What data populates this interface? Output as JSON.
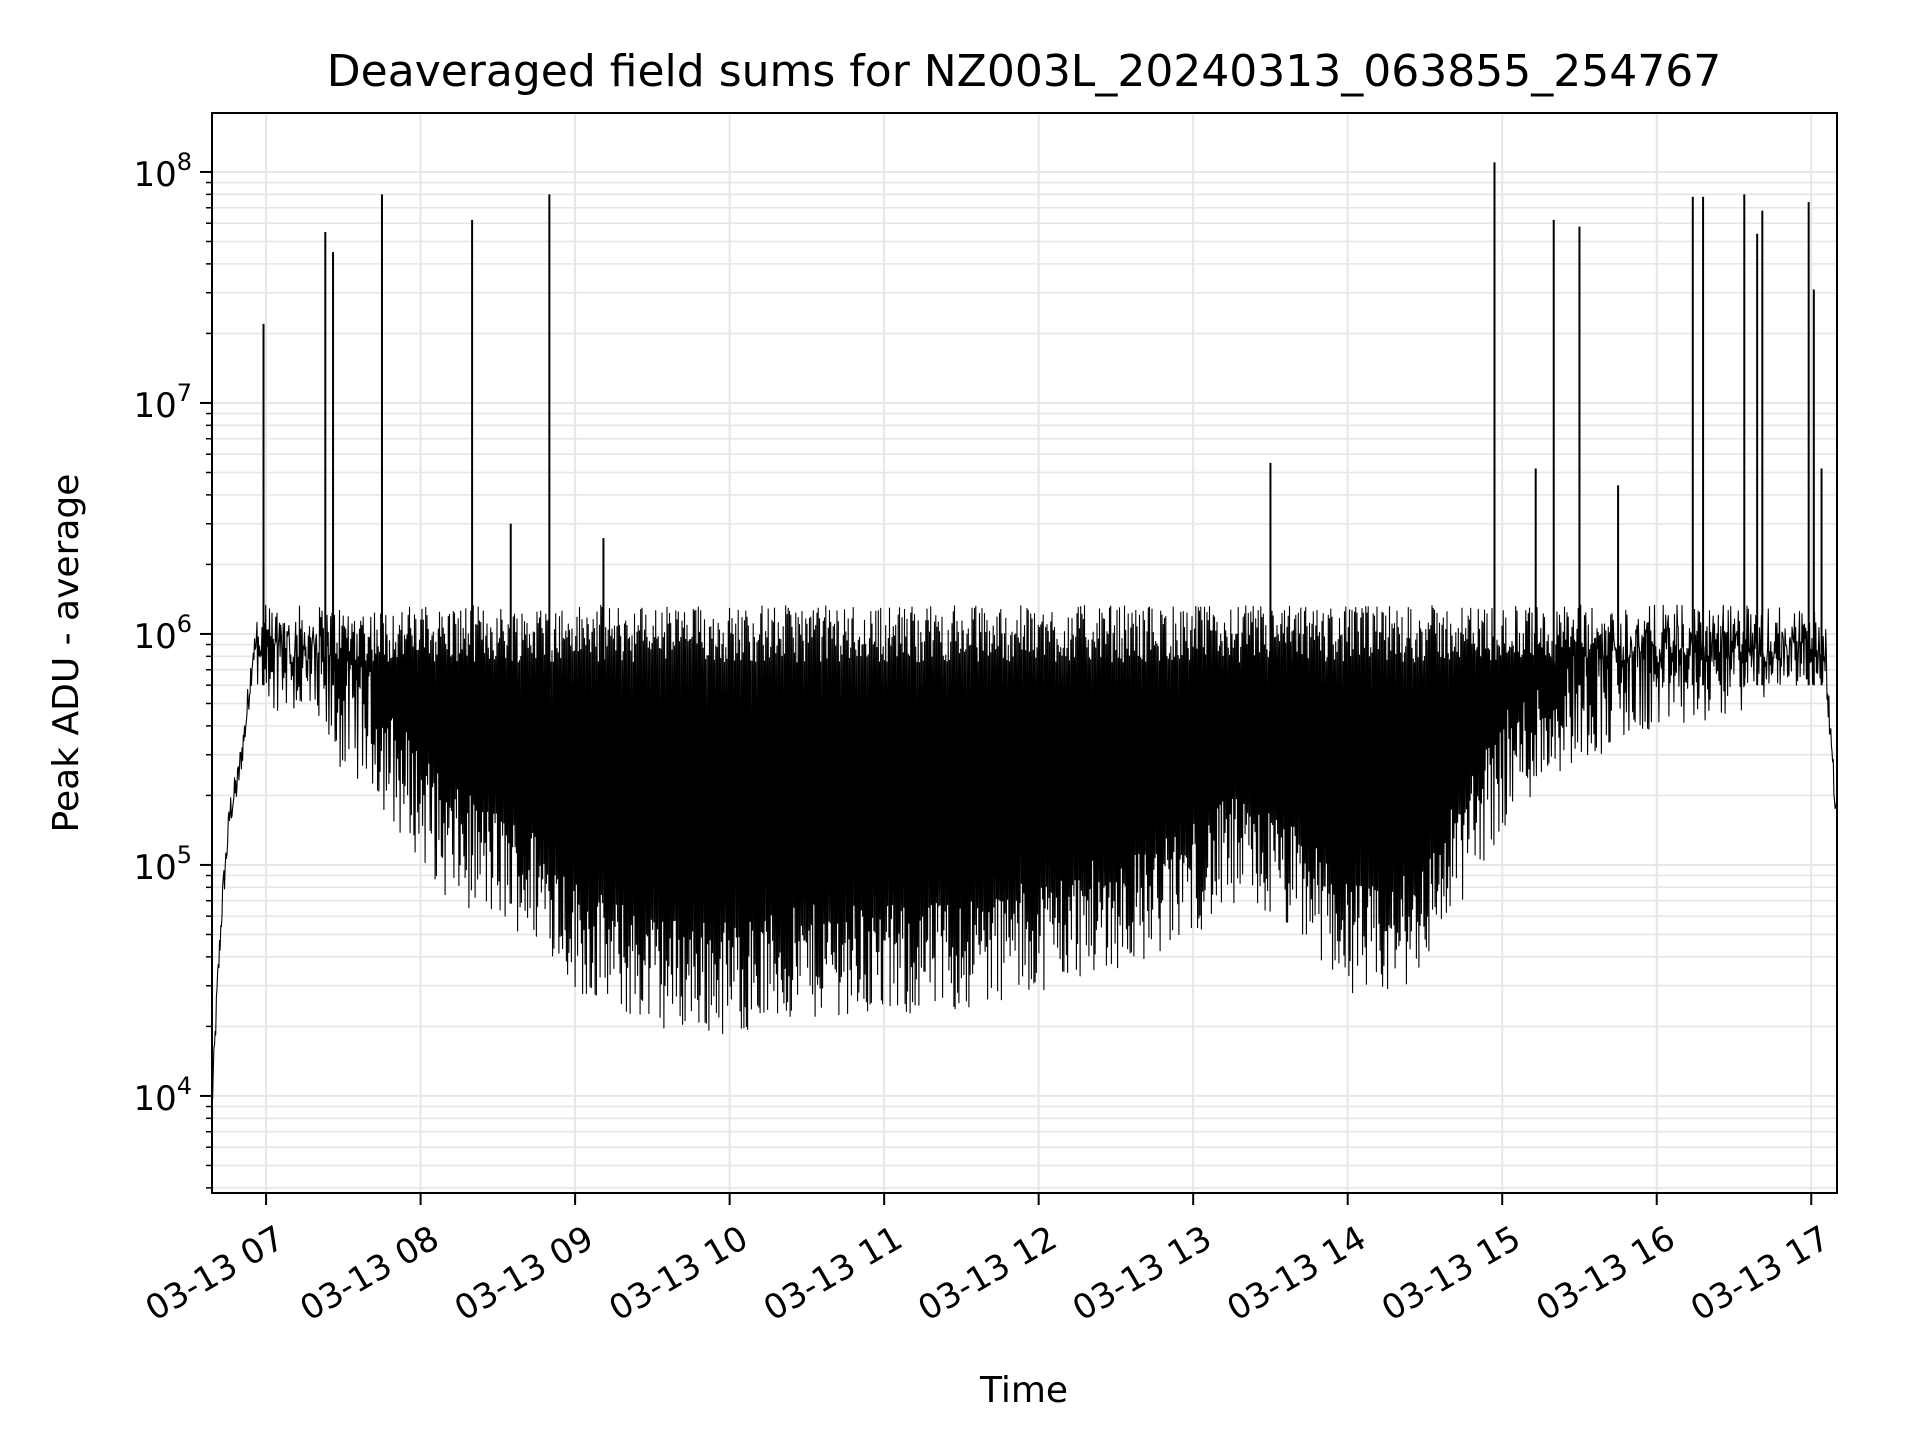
{
  "chart_data": {
    "type": "line",
    "title": "Deaveraged field sums for NZ003L_20240313_063855_254767",
    "xlabel": "Time",
    "ylabel": "Peak ADU - average",
    "y_scale": "log",
    "ylim": [
      3800,
      180000000
    ],
    "xlim": [
      "2024-03-13 06:39",
      "2024-03-13 17:10"
    ],
    "grid": true,
    "x_tick_values": [
      "2024-03-13 07:00",
      "2024-03-13 08:00",
      "2024-03-13 09:00",
      "2024-03-13 10:00",
      "2024-03-13 11:00",
      "2024-03-13 12:00",
      "2024-03-13 13:00",
      "2024-03-13 14:00",
      "2024-03-13 15:00",
      "2024-03-13 16:00",
      "2024-03-13 17:00"
    ],
    "x_tick_labels": [
      "03-13 07",
      "03-13 08",
      "03-13 09",
      "03-13 10",
      "03-13 11",
      "03-13 12",
      "03-13 13",
      "03-13 14",
      "03-13 15",
      "03-13 16",
      "03-13 17"
    ],
    "y_tick_values": [
      10000,
      100000,
      1000000,
      10000000,
      100000000
    ],
    "y_tick_labels": [
      {
        "base": "10",
        "exp": "4"
      },
      {
        "base": "10",
        "exp": "5"
      },
      {
        "base": "10",
        "exp": "6"
      },
      {
        "base": "10",
        "exp": "7"
      },
      {
        "base": "10",
        "exp": "8"
      }
    ],
    "series": [
      {
        "color": "#000000",
        "x": [
          "2024-03-13 06:39",
          "2024-03-13 06:41",
          "2024-03-13 06:43",
          "2024-03-13 06:46",
          "2024-03-13 06:49",
          "2024-03-13 06:52",
          "2024-03-13 06:55",
          "2024-03-13 06:58",
          "2024-03-13 07:00",
          "2024-03-13 07:05",
          "2024-03-13 07:10",
          "2024-03-13 07:15",
          "2024-03-13 07:20",
          "2024-03-13 07:24",
          "2024-03-13 07:26",
          "2024-03-13 07:30",
          "2024-03-13 07:40",
          "2024-03-13 07:45",
          "2024-03-13 07:50",
          "2024-03-13 08:00",
          "2024-03-13 08:10",
          "2024-03-13 08:20",
          "2024-03-13 08:30",
          "2024-03-13 08:40",
          "2024-03-13 08:50",
          "2024-03-13 09:00",
          "2024-03-13 09:15",
          "2024-03-13 09:30",
          "2024-03-13 09:45",
          "2024-03-13 10:00",
          "2024-03-13 10:15",
          "2024-03-13 10:30",
          "2024-03-13 10:45",
          "2024-03-13 11:00",
          "2024-03-13 11:15",
          "2024-03-13 11:30",
          "2024-03-13 11:45",
          "2024-03-13 12:00",
          "2024-03-13 12:15",
          "2024-03-13 12:30",
          "2024-03-13 12:45",
          "2024-03-13 13:00",
          "2024-03-13 13:15",
          "2024-03-13 13:30",
          "2024-03-13 13:45",
          "2024-03-13 14:00",
          "2024-03-13 14:15",
          "2024-03-13 14:30",
          "2024-03-13 14:45",
          "2024-03-13 15:00",
          "2024-03-13 15:15",
          "2024-03-13 15:30",
          "2024-03-13 15:45",
          "2024-03-13 16:00",
          "2024-03-13 16:15",
          "2024-03-13 16:30",
          "2024-03-13 16:45",
          "2024-03-13 17:00",
          "2024-03-13 17:05",
          "2024-03-13 17:08",
          "2024-03-13 17:10"
        ],
        "y": [
          9000,
          28000,
          70000,
          170000,
          230000,
          400000,
          850000,
          900000,
          700000,
          650000,
          600000,
          520000,
          450000,
          420000,
          380000,
          350000,
          320000,
          250000,
          200000,
          150000,
          100000,
          90000,
          80000,
          70000,
          60000,
          40000,
          32000,
          28000,
          27000,
          26000,
          28000,
          30000,
          32000,
          30000,
          31000,
          33000,
          36000,
          40000,
          45000,
          50000,
          55000,
          70000,
          90000,
          80000,
          60000,
          40000,
          35000,
          50000,
          100000,
          200000,
          300000,
          400000,
          450000,
          500000,
          550000,
          620000,
          750000,
          1100000,
          900000,
          300000,
          150000
        ]
      }
    ],
    "spikes": [
      {
        "x": "2024-03-13 06:59",
        "y": 22000000
      },
      {
        "x": "2024-03-13 07:23",
        "y": 55000000
      },
      {
        "x": "2024-03-13 07:26",
        "y": 45000000
      },
      {
        "x": "2024-03-13 07:45",
        "y": 80000000
      },
      {
        "x": "2024-03-13 08:20",
        "y": 62000000
      },
      {
        "x": "2024-03-13 08:35",
        "y": 3000000
      },
      {
        "x": "2024-03-13 08:50",
        "y": 80000000
      },
      {
        "x": "2024-03-13 09:11",
        "y": 2600000
      },
      {
        "x": "2024-03-13 13:30",
        "y": 5500000
      },
      {
        "x": "2024-03-13 14:57",
        "y": 110000000
      },
      {
        "x": "2024-03-13 15:13",
        "y": 5200000
      },
      {
        "x": "2024-03-13 15:20",
        "y": 62000000
      },
      {
        "x": "2024-03-13 15:30",
        "y": 58000000
      },
      {
        "x": "2024-03-13 15:45",
        "y": 4400000
      },
      {
        "x": "2024-03-13 16:14",
        "y": 78000000
      },
      {
        "x": "2024-03-13 16:18",
        "y": 78000000
      },
      {
        "x": "2024-03-13 16:34",
        "y": 80000000
      },
      {
        "x": "2024-03-13 16:39",
        "y": 54000000
      },
      {
        "x": "2024-03-13 16:41",
        "y": 68000000
      },
      {
        "x": "2024-03-13 16:59",
        "y": 74000000
      },
      {
        "x": "2024-03-13 17:01",
        "y": 31000000
      },
      {
        "x": "2024-03-13 17:04",
        "y": 5200000
      }
    ]
  }
}
